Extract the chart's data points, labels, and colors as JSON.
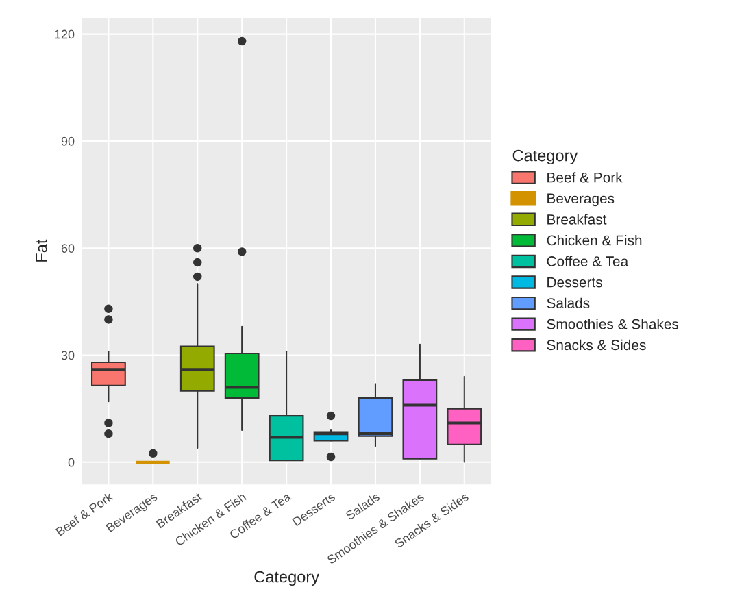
{
  "chart_data": {
    "type": "box",
    "xlabel": "Category",
    "ylabel": "Fat",
    "legend_title": "Category",
    "legend": "right",
    "categories": [
      "Beef & Pork",
      "Beverages",
      "Breakfast",
      "Chicken & Fish",
      "Coffee & Tea",
      "Desserts",
      "Salads",
      "Smoothies & Shakes",
      "Snacks & Sides"
    ],
    "series": [
      {
        "name": "Beef & Pork",
        "color": "#f8766d",
        "boxes": [
          {
            "low": 17,
            "q1": 21.5,
            "median": 26,
            "q3": 28,
            "high": 31,
            "outliers": [
              43,
              40,
              11,
              8
            ]
          },
          null,
          null,
          null,
          null,
          null,
          null,
          null,
          null
        ]
      },
      {
        "name": "Beverages",
        "color": "#d39200",
        "boxes": [
          null,
          {
            "low": 0,
            "q1": 0,
            "median": 0,
            "q3": 0,
            "high": 0,
            "outliers": [
              2.5
            ]
          },
          null,
          null,
          null,
          null,
          null,
          null,
          null
        ]
      },
      {
        "name": "Breakfast",
        "color": "#93aa00",
        "boxes": [
          null,
          null,
          {
            "low": 4,
            "q1": 20,
            "median": 26,
            "q3": 32.5,
            "high": 50,
            "outliers": [
              60,
              56,
              52
            ]
          },
          null,
          null,
          null,
          null,
          null,
          null
        ]
      },
      {
        "name": "Chicken & Fish",
        "color": "#00ba38",
        "boxes": [
          null,
          null,
          null,
          {
            "low": 9,
            "q1": 18,
            "median": 21,
            "q3": 30.5,
            "high": 38,
            "outliers": [
              118,
              59
            ]
          },
          null,
          null,
          null,
          null,
          null
        ]
      },
      {
        "name": "Coffee & Tea",
        "color": "#00c19f",
        "boxes": [
          null,
          null,
          null,
          null,
          {
            "low": 0.5,
            "q1": 0.5,
            "median": 7,
            "q3": 13,
            "high": 31
          },
          null,
          null,
          null,
          null
        ]
      },
      {
        "name": "Desserts",
        "color": "#00b9e3",
        "boxes": [
          null,
          null,
          null,
          null,
          null,
          {
            "low": 6,
            "q1": 6,
            "median": 8,
            "q3": 8.5,
            "high": 9,
            "outliers": [
              13,
              1.5
            ]
          },
          null,
          null,
          null
        ]
      },
      {
        "name": "Salads",
        "color": "#619cff",
        "boxes": [
          null,
          null,
          null,
          null,
          null,
          null,
          {
            "low": 4.5,
            "q1": 7.3,
            "median": 8,
            "q3": 18,
            "high": 22
          },
          null,
          null
        ]
      },
      {
        "name": "Smoothies & Shakes",
        "color": "#db72fb",
        "boxes": [
          null,
          null,
          null,
          null,
          null,
          null,
          null,
          {
            "low": 1,
            "q1": 1,
            "median": 16,
            "q3": 23,
            "high": 33
          },
          null
        ]
      },
      {
        "name": "Snacks & Sides",
        "color": "#ff61c3",
        "boxes": [
          null,
          null,
          null,
          null,
          null,
          null,
          null,
          null,
          {
            "low": 0,
            "q1": 5,
            "median": 11,
            "q3": 15,
            "high": 24
          }
        ]
      }
    ],
    "ylim": [
      -6.2,
      124.5
    ],
    "yticks": [
      0,
      30,
      60,
      90,
      120
    ],
    "grid": true
  }
}
